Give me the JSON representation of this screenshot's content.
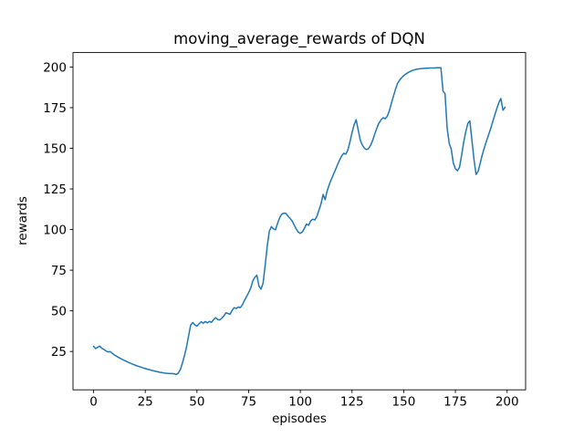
{
  "figure": {
    "background": "#ffffff"
  },
  "chart_data": {
    "type": "line",
    "title": "moving_average_rewards of DQN",
    "xlabel": "episodes",
    "ylabel": "rewards",
    "legend_position": "none",
    "grid": false,
    "line_color": "#1f77b4",
    "line_width": 1.5,
    "axis_color": "#000000",
    "x_ticks": [
      0,
      25,
      50,
      75,
      100,
      125,
      150,
      175,
      200
    ],
    "y_ticks": [
      25,
      50,
      75,
      100,
      125,
      150,
      175,
      200
    ],
    "xlim": [
      -9.95,
      208.95
    ],
    "ylim": [
      1.4,
      208.9
    ],
    "x_start": 0,
    "x_step": 1,
    "values": [
      28.2,
      26.8,
      27.6,
      28.3,
      27.0,
      26.2,
      25.4,
      24.7,
      24.9,
      23.9,
      22.9,
      22.2,
      21.4,
      20.7,
      20.0,
      19.4,
      18.8,
      18.2,
      17.7,
      17.1,
      16.6,
      16.1,
      15.7,
      15.3,
      14.9,
      14.5,
      14.1,
      13.8,
      13.4,
      13.1,
      12.8,
      12.5,
      12.2,
      12.0,
      11.8,
      11.6,
      11.5,
      11.4,
      11.4,
      11.3,
      10.9,
      11.6,
      14.0,
      18.0,
      22.5,
      28.0,
      35.0,
      41.3,
      42.8,
      41.4,
      40.6,
      42.0,
      43.3,
      42.4,
      43.4,
      42.6,
      43.5,
      42.9,
      44.6,
      45.8,
      44.7,
      44.4,
      45.4,
      46.8,
      48.8,
      48.4,
      47.9,
      50.3,
      51.9,
      51.4,
      52.4,
      52.0,
      53.8,
      56.5,
      58.8,
      61.2,
      64.0,
      68.3,
      70.6,
      71.9,
      65.2,
      63.4,
      67.0,
      78.0,
      90.0,
      98.9,
      101.8,
      100.4,
      99.9,
      103.8,
      107.3,
      109.4,
      110.1,
      109.9,
      108.4,
      106.9,
      105.4,
      102.9,
      100.4,
      98.4,
      97.6,
      98.6,
      100.9,
      103.4,
      102.6,
      105.3,
      106.4,
      105.9,
      108.1,
      111.9,
      115.8,
      121.6,
      118.4,
      123.9,
      127.8,
      130.9,
      133.9,
      136.9,
      139.9,
      142.8,
      145.4,
      146.9,
      146.4,
      148.9,
      153.9,
      159.7,
      164.4,
      167.6,
      161.2,
      155.1,
      151.9,
      150.0,
      149.2,
      149.8,
      151.9,
      154.9,
      158.8,
      162.4,
      165.4,
      167.4,
      168.8,
      168.2,
      169.6,
      172.9,
      177.4,
      181.9,
      186.3,
      189.8,
      191.9,
      193.5,
      194.7,
      195.7,
      196.5,
      197.2,
      197.8,
      198.2,
      198.6,
      198.8,
      199.0,
      199.1,
      199.2,
      199.3,
      199.3,
      199.4,
      199.4,
      199.4,
      199.5,
      199.5,
      199.5,
      185.2,
      183.6,
      162.5,
      152.9,
      149.5,
      140.9,
      137.4,
      136.2,
      138.4,
      145.8,
      153.6,
      160.1,
      165.3,
      166.9,
      154.8,
      142.9,
      133.9,
      135.9,
      140.9,
      145.9,
      150.4,
      154.4,
      158.1,
      161.9,
      166.2,
      170.3,
      174.4,
      178.1,
      180.6,
      173.4,
      175.2
    ]
  }
}
